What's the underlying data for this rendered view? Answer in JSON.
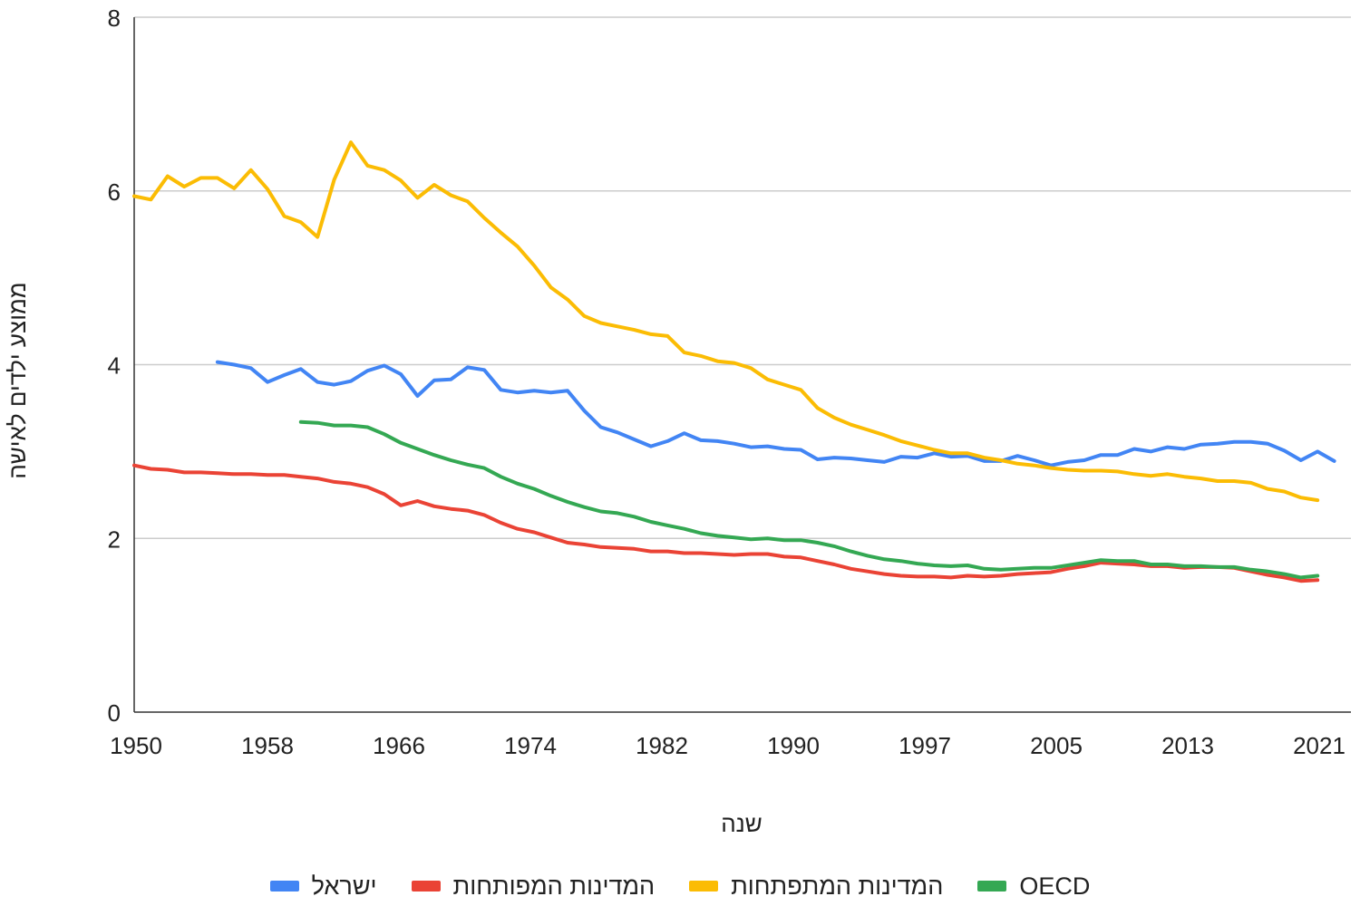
{
  "chart_data": {
    "type": "line",
    "title": "",
    "xlabel": "שנה",
    "ylabel": "ממוצע ילדים לאישה",
    "ylim": [
      0,
      8
    ],
    "xlim": [
      1950,
      2023
    ],
    "yticks": [
      "0",
      "2",
      "4",
      "6",
      "8"
    ],
    "xticks": [
      "1950",
      "1958",
      "1966",
      "1974",
      "1982",
      "1990",
      "1997",
      "2005",
      "2013",
      "2021"
    ],
    "grid": true,
    "legend_position": "bottom",
    "x": [
      1950,
      1951,
      1952,
      1953,
      1954,
      1955,
      1956,
      1957,
      1958,
      1959,
      1960,
      1961,
      1962,
      1963,
      1964,
      1965,
      1966,
      1967,
      1968,
      1969,
      1970,
      1971,
      1972,
      1973,
      1974,
      1975,
      1976,
      1977,
      1978,
      1979,
      1980,
      1981,
      1982,
      1983,
      1984,
      1985,
      1986,
      1987,
      1988,
      1989,
      1990,
      1991,
      1992,
      1993,
      1994,
      1995,
      1996,
      1997,
      1998,
      1999,
      2000,
      2001,
      2002,
      2003,
      2004,
      2005,
      2006,
      2007,
      2008,
      2009,
      2010,
      2011,
      2012,
      2013,
      2014,
      2015,
      2016,
      2017,
      2018,
      2019,
      2020,
      2021,
      2022
    ],
    "series": [
      {
        "name": "ישראל",
        "color": "#4285f4",
        "values": [
          null,
          null,
          null,
          null,
          null,
          4.03,
          4.0,
          3.96,
          3.8,
          3.88,
          3.95,
          3.8,
          3.77,
          3.81,
          3.93,
          3.99,
          3.89,
          3.64,
          3.82,
          3.83,
          3.97,
          3.94,
          3.71,
          3.68,
          3.7,
          3.68,
          3.7,
          3.47,
          3.28,
          3.22,
          3.14,
          3.06,
          3.12,
          3.21,
          3.13,
          3.12,
          3.09,
          3.05,
          3.06,
          3.03,
          3.02,
          2.91,
          2.93,
          2.92,
          2.9,
          2.88,
          2.94,
          2.93,
          2.98,
          2.94,
          2.95,
          2.89,
          2.89,
          2.95,
          2.9,
          2.84,
          2.88,
          2.9,
          2.96,
          2.96,
          3.03,
          3.0,
          3.05,
          3.03,
          3.08,
          3.09,
          3.11,
          3.11,
          3.09,
          3.01,
          2.9,
          3.0,
          2.89
        ]
      },
      {
        "name": "המדינות המפותחות",
        "color": "#ea4335",
        "values": [
          2.84,
          2.8,
          2.79,
          2.76,
          2.76,
          2.75,
          2.74,
          2.74,
          2.73,
          2.73,
          2.71,
          2.69,
          2.65,
          2.63,
          2.59,
          2.51,
          2.38,
          2.43,
          2.37,
          2.34,
          2.32,
          2.27,
          2.18,
          2.11,
          2.07,
          2.01,
          1.95,
          1.93,
          1.9,
          1.89,
          1.88,
          1.85,
          1.85,
          1.83,
          1.83,
          1.82,
          1.81,
          1.82,
          1.82,
          1.79,
          1.78,
          1.74,
          1.7,
          1.65,
          1.62,
          1.59,
          1.57,
          1.56,
          1.56,
          1.55,
          1.57,
          1.56,
          1.57,
          1.59,
          1.6,
          1.61,
          1.65,
          1.68,
          1.72,
          1.71,
          1.7,
          1.68,
          1.68,
          1.66,
          1.67,
          1.67,
          1.66,
          1.62,
          1.58,
          1.55,
          1.51,
          1.52,
          null
        ]
      },
      {
        "name": "המדינות המתפתחות",
        "color": "#fbbc04",
        "values": [
          5.94,
          5.9,
          6.17,
          6.05,
          6.15,
          6.15,
          6.03,
          6.24,
          6.02,
          5.71,
          5.64,
          5.47,
          6.13,
          6.56,
          6.29,
          6.24,
          6.12,
          5.92,
          6.07,
          5.95,
          5.88,
          5.69,
          5.52,
          5.36,
          5.14,
          4.89,
          4.75,
          4.56,
          4.48,
          4.44,
          4.4,
          4.35,
          4.33,
          4.14,
          4.1,
          4.04,
          4.02,
          3.96,
          3.83,
          3.77,
          3.71,
          3.5,
          3.39,
          3.31,
          3.25,
          3.19,
          3.12,
          3.07,
          3.02,
          2.98,
          2.98,
          2.93,
          2.9,
          2.86,
          2.84,
          2.81,
          2.79,
          2.78,
          2.78,
          2.77,
          2.74,
          2.72,
          2.74,
          2.71,
          2.69,
          2.66,
          2.66,
          2.64,
          2.57,
          2.54,
          2.47,
          2.44,
          null
        ]
      },
      {
        "name": "OECD",
        "color": "#34a853",
        "values": [
          null,
          null,
          null,
          null,
          null,
          null,
          null,
          null,
          null,
          null,
          3.34,
          3.33,
          3.3,
          3.3,
          3.28,
          3.2,
          3.1,
          3.03,
          2.96,
          2.9,
          2.85,
          2.81,
          2.71,
          2.63,
          2.57,
          2.49,
          2.42,
          2.36,
          2.31,
          2.29,
          2.25,
          2.19,
          2.15,
          2.11,
          2.06,
          2.03,
          2.01,
          1.99,
          2.0,
          1.98,
          1.98,
          1.95,
          1.91,
          1.85,
          1.8,
          1.76,
          1.74,
          1.71,
          1.69,
          1.68,
          1.69,
          1.65,
          1.64,
          1.65,
          1.66,
          1.66,
          1.69,
          1.72,
          1.75,
          1.74,
          1.74,
          1.7,
          1.7,
          1.68,
          1.68,
          1.67,
          1.67,
          1.64,
          1.62,
          1.59,
          1.55,
          1.57,
          null
        ]
      }
    ]
  }
}
